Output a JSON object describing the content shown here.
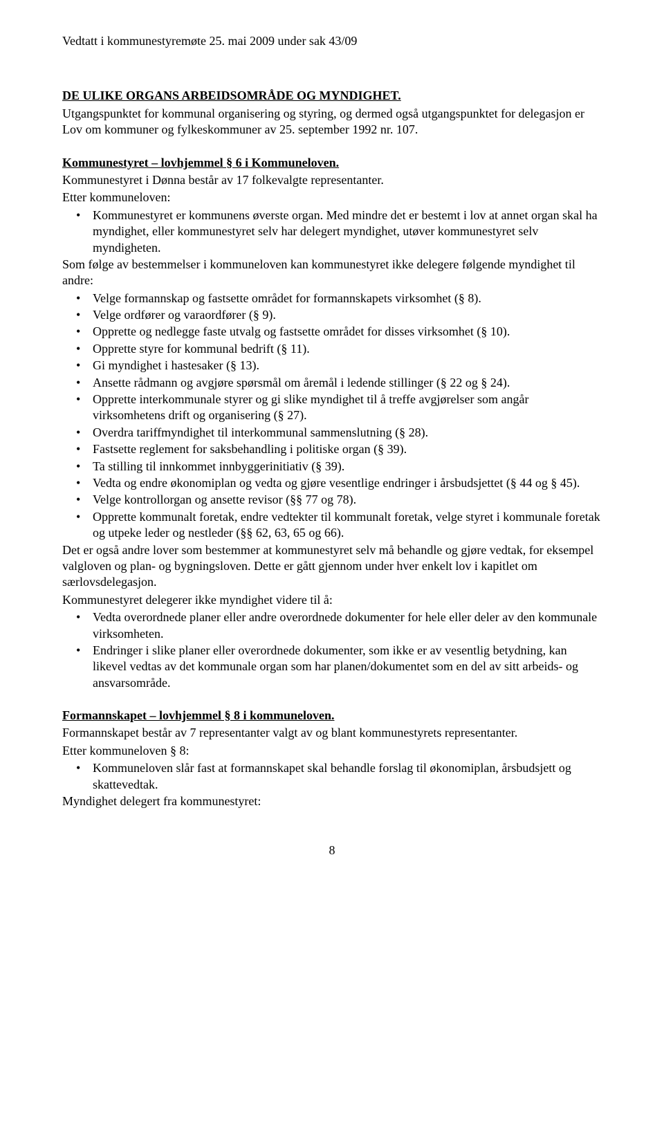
{
  "header": "Vedtatt i kommunestyremøte 25. mai 2009 under sak 43/09",
  "title": "DE ULIKE ORGANS ARBEIDSOMRÅDE OG MYNDIGHET.",
  "intro": "Utgangspunktet for kommunal organisering og styring, og dermed også utgangspunktet for delegasjon er Lov om kommuner og fylkeskommuner av 25. september 1992 nr. 107.",
  "ks_heading": "Kommunestyret – lovhjemmel § 6 i Kommuneloven.",
  "ks_line1": "Kommunestyret i Dønna består av 17 folkevalgte representanter.",
  "ks_line2": "Etter kommuneloven:",
  "ks_bullet1": "Kommunestyret er kommunens øverste organ. Med mindre det er bestemt i lov at annet organ skal ha myndighet, eller kommunestyret selv har delegert myndighet, utøver kommunestyret selv myndigheten.",
  "ks_para2": "Som følge av bestemmelser i kommuneloven kan kommunestyret ikke delegere følgende myndighet til andre:",
  "ks_list2": [
    "Velge formannskap og fastsette området for formannskapets virksomhet (§ 8).",
    "Velge ordfører og varaordfører (§ 9).",
    "Opprette og nedlegge faste utvalg og fastsette området for disses virksomhet (§ 10).",
    "Opprette styre for kommunal bedrift (§ 11).",
    "Gi myndighet i hastesaker (§ 13).",
    "Ansette rådmann og avgjøre spørsmål om åremål i ledende stillinger (§ 22 og § 24).",
    "Opprette interkommunale styrer og gi slike myndighet til å treffe avgjørelser som angår virksomhetens drift og organisering (§ 27).",
    "Overdra tariffmyndighet til interkommunal sammenslutning (§ 28).",
    "Fastsette reglement for saksbehandling i politiske organ (§ 39).",
    "Ta stilling til innkommet innbyggerinitiativ (§ 39).",
    "Vedta og endre økonomiplan og vedta og gjøre vesentlige endringer i årsbudsjettet (§ 44 og § 45).",
    "Velge kontrollorgan og ansette revisor (§§ 77 og 78).",
    "Opprette kommunalt foretak, endre vedtekter til kommunalt foretak, velge styret i kommunale foretak og utpeke leder og nestleder (§§ 62, 63, 65 og 66)."
  ],
  "ks_para3": "Det er også andre lover som bestemmer at kommunestyret selv må behandle og gjøre vedtak, for eksempel valgloven og plan- og bygningsloven. Dette er gått gjennom under hver enkelt lov i kapitlet om særlovsdelegasjon.",
  "ks_para4": "Kommunestyret delegerer ikke myndighet videre til å:",
  "ks_list3": [
    "Vedta overordnede planer eller andre overordnede dokumenter for hele eller deler av den kommunale virksomheten.",
    "Endringer i slike planer eller overordnede dokumenter, som ikke er av vesentlig betydning, kan likevel vedtas av det kommunale organ som har planen/dokumentet som en del av sitt arbeids- og ansvarsområde."
  ],
  "fs_heading": "Formannskapet – lovhjemmel § 8 i kommuneloven.",
  "fs_line1": "Formannskapet består av 7 representanter valgt av og blant kommunestyrets representanter.",
  "fs_line2": "Etter kommuneloven § 8:",
  "fs_bullet1": "Kommuneloven slår fast at formannskapet skal behandle forslag til økonomiplan, årsbudsjett og skattevedtak.",
  "fs_line3": "Myndighet delegert fra kommunestyret:",
  "page_number": "8"
}
